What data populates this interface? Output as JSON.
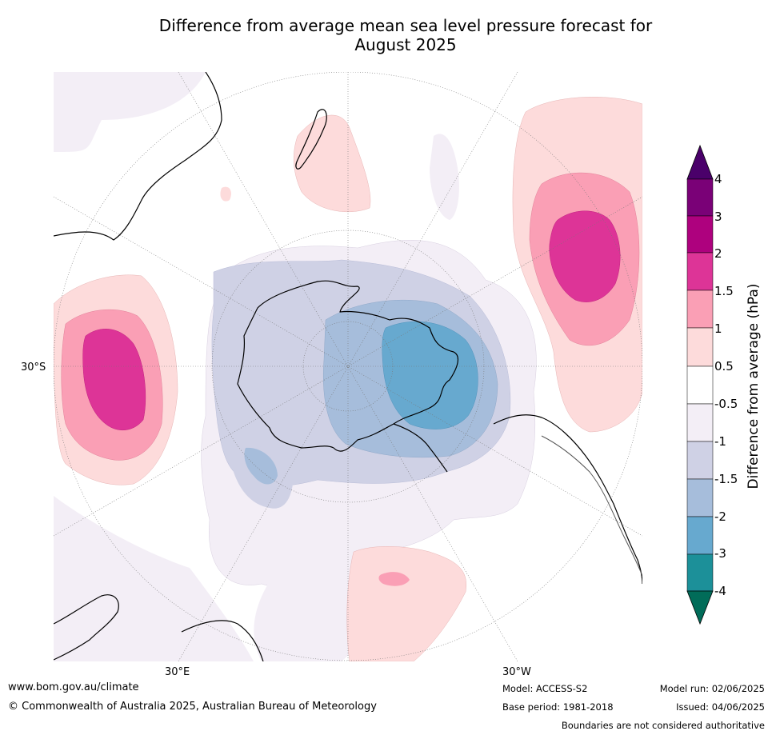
{
  "title_line1": "Difference from average mean sea level pressure forecast for",
  "title_line2": "August 2025",
  "map": {
    "lat_label": "30°S",
    "lon_label_left": "30°E",
    "lon_label_right": "30°W"
  },
  "colorbar": {
    "title": "Difference from average (hPa)",
    "ticks": [
      "4",
      "3",
      "2",
      "1.5",
      "1",
      "0.5",
      "-0.5",
      "-1",
      "-1.5",
      "-2",
      "-3",
      "-4"
    ],
    "colors": {
      "over": "#4a006a",
      "3_4": "#7a0177",
      "2_3": "#ae017e",
      "1.5_2": "#dd3497",
      "1_1.5": "#fa9fb5",
      "0.5_1": "#fddbdb",
      "neutral": "#ffffff",
      "m1_m0.5": "#f3eef6",
      "m1.5_m1": "#cfd1e5",
      "m2_m1.5": "#a6bddb",
      "m3_m2": "#67a9cf",
      "m4_m3": "#1c9099",
      "under": "#016c59"
    }
  },
  "footer": {
    "url": "www.bom.gov.au/climate",
    "copyright": "© Commonwealth of Australia 2025, Australian Bureau of Meteorology",
    "model": "Model: ACCESS-S2",
    "base_period": "Base period: 1981-2018",
    "model_run": "Model run: 02/06/2025",
    "issued": "Issued: 04/06/2025",
    "disclaimer": "Boundaries are not considered authoritative"
  }
}
